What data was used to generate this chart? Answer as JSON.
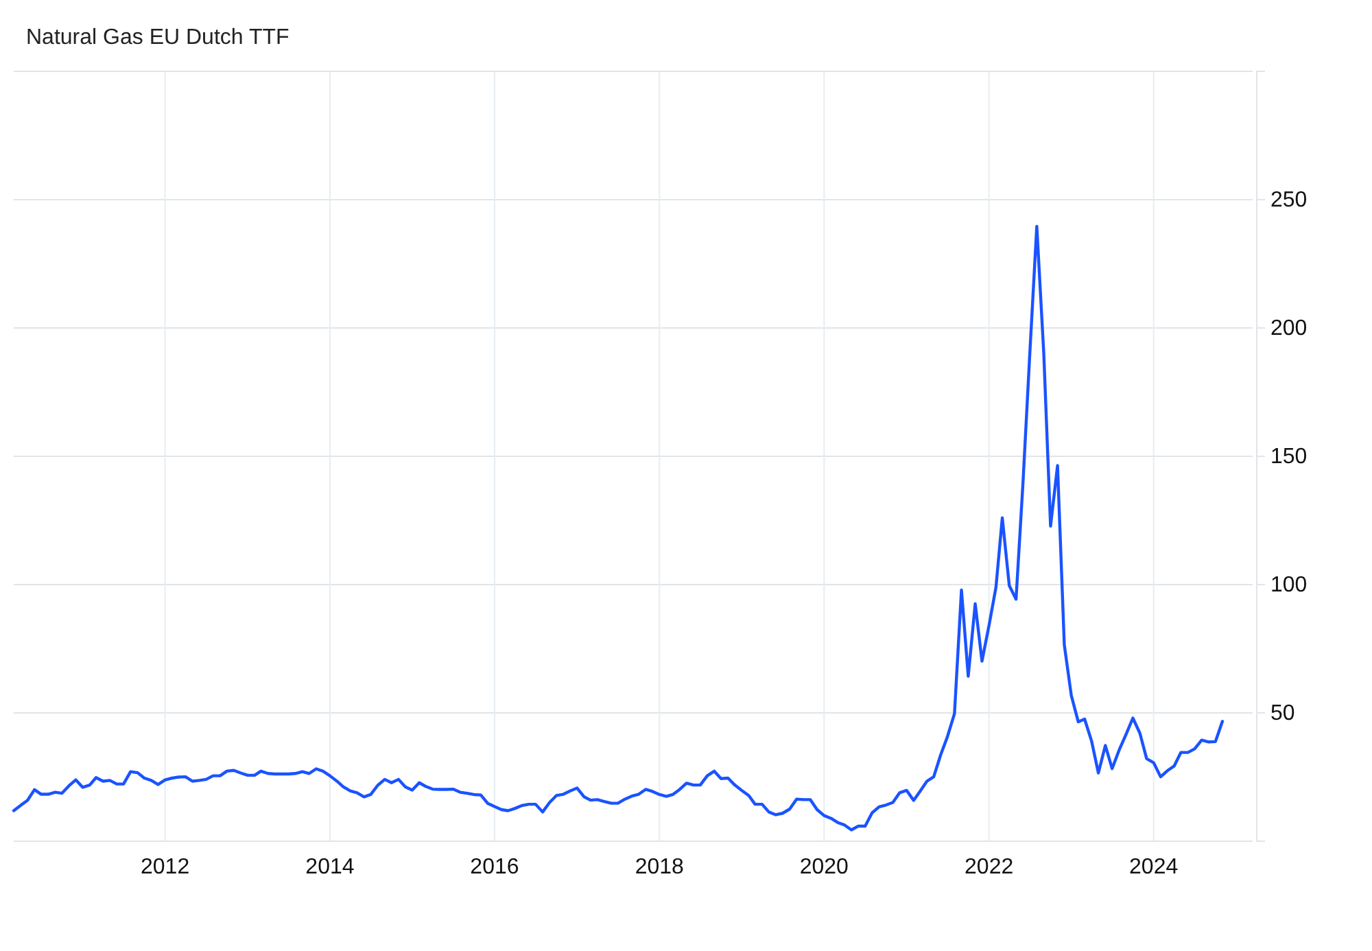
{
  "chart_data": {
    "type": "line",
    "title": "Natural Gas EU Dutch TTF",
    "x": [
      "2010-03",
      "2010-04",
      "2010-05",
      "2010-06",
      "2010-07",
      "2010-08",
      "2010-09",
      "2010-10",
      "2010-11",
      "2010-12",
      "2011-01",
      "2011-02",
      "2011-03",
      "2011-04",
      "2011-05",
      "2011-06",
      "2011-07",
      "2011-08",
      "2011-09",
      "2011-10",
      "2011-11",
      "2011-12",
      "2012-01",
      "2012-02",
      "2012-03",
      "2012-04",
      "2012-05",
      "2012-06",
      "2012-07",
      "2012-08",
      "2012-09",
      "2012-10",
      "2012-11",
      "2012-12",
      "2013-01",
      "2013-02",
      "2013-03",
      "2013-04",
      "2013-05",
      "2013-06",
      "2013-07",
      "2013-08",
      "2013-09",
      "2013-10",
      "2013-11",
      "2013-12",
      "2014-01",
      "2014-02",
      "2014-03",
      "2014-04",
      "2014-05",
      "2014-06",
      "2014-07",
      "2014-08",
      "2014-09",
      "2014-10",
      "2014-11",
      "2014-12",
      "2015-01",
      "2015-02",
      "2015-03",
      "2015-04",
      "2015-05",
      "2015-06",
      "2015-07",
      "2015-08",
      "2015-09",
      "2015-10",
      "2015-11",
      "2015-12",
      "2016-01",
      "2016-02",
      "2016-03",
      "2016-04",
      "2016-05",
      "2016-06",
      "2016-07",
      "2016-08",
      "2016-09",
      "2016-10",
      "2016-11",
      "2016-12",
      "2017-01",
      "2017-02",
      "2017-03",
      "2017-04",
      "2017-05",
      "2017-06",
      "2017-07",
      "2017-08",
      "2017-09",
      "2017-10",
      "2017-11",
      "2017-12",
      "2018-01",
      "2018-02",
      "2018-03",
      "2018-04",
      "2018-05",
      "2018-06",
      "2018-07",
      "2018-08",
      "2018-09",
      "2018-10",
      "2018-11",
      "2018-12",
      "2019-01",
      "2019-02",
      "2019-03",
      "2019-04",
      "2019-05",
      "2019-06",
      "2019-07",
      "2019-08",
      "2019-09",
      "2019-10",
      "2019-11",
      "2019-12",
      "2020-01",
      "2020-02",
      "2020-03",
      "2020-04",
      "2020-05",
      "2020-06",
      "2020-07",
      "2020-08",
      "2020-09",
      "2020-10",
      "2020-11",
      "2020-12",
      "2021-01",
      "2021-02",
      "2021-03",
      "2021-04",
      "2021-05",
      "2021-06",
      "2021-07",
      "2021-08",
      "2021-09",
      "2021-10",
      "2021-11",
      "2021-12",
      "2022-01",
      "2022-02",
      "2022-03",
      "2022-04",
      "2022-05",
      "2022-06",
      "2022-07",
      "2022-08",
      "2022-09",
      "2022-10",
      "2022-11",
      "2022-12",
      "2023-01",
      "2023-02",
      "2023-03",
      "2023-04",
      "2023-05",
      "2023-06",
      "2023-07",
      "2023-08",
      "2023-09",
      "2023-10",
      "2023-11",
      "2023-12",
      "2024-01",
      "2024-02",
      "2024-03",
      "2024-04",
      "2024-05",
      "2024-06",
      "2024-07",
      "2024-08",
      "2024-09",
      "2024-10",
      "2024-11"
    ],
    "series": [
      {
        "color": "#1a53ff",
        "values": [
          11.9,
          14,
          15.9,
          20.1,
          18.3,
          18.3,
          19.1,
          18.7,
          21.6,
          23.9,
          21,
          21.9,
          24.8,
          23.4,
          23.7,
          22.3,
          22.3,
          27.1,
          26.7,
          24.6,
          23.7,
          22.1,
          23.9,
          24.6,
          25,
          25.1,
          23.4,
          23.7,
          24.1,
          25.5,
          25.5,
          27.3,
          27.6,
          26.6,
          25.7,
          25.7,
          27.3,
          26.4,
          26.2,
          26.2,
          26.2,
          26.4,
          27.1,
          26.4,
          28.2,
          27.3,
          25.5,
          23.4,
          21.2,
          19.6,
          18.9,
          17.3,
          18.2,
          21.8,
          24.1,
          22.8,
          24.1,
          21.2,
          19.9,
          22.8,
          21.4,
          20.3,
          20.2,
          20.2,
          20.3,
          19.1,
          18.7,
          18.2,
          18,
          14.8,
          13.5,
          12.3,
          11.9,
          12.8,
          13.9,
          14.4,
          14.4,
          11.4,
          15.1,
          17.8,
          18.3,
          19.6,
          20.7,
          17.3,
          16,
          16.2,
          15.5,
          14.8,
          14.8,
          16.4,
          17.6,
          18.3,
          20.2,
          19.4,
          18.2,
          17.5,
          18.2,
          20.2,
          22.6,
          21.9,
          21.9,
          25.5,
          27.3,
          24.4,
          24.6,
          21.9,
          19.8,
          17.8,
          14.4,
          14.4,
          11.4,
          10.3,
          10.9,
          12.5,
          16.4,
          16.2,
          16.2,
          12.3,
          10,
          8.9,
          7.3,
          6.3,
          4.4,
          5.9,
          5.9,
          11.1,
          13.4,
          14.1,
          15.1,
          18.9,
          19.8,
          15.9,
          19.4,
          23.4,
          25.1,
          33.7,
          40.8,
          49.7,
          97.9,
          64.3,
          92.5,
          70.2,
          84,
          99,
          126,
          99.6,
          94.3,
          140,
          190,
          239.6,
          190,
          122.8,
          146.4,
          76.5,
          56.8,
          46.5,
          47.6,
          39,
          26.6,
          37.3,
          28.3,
          35.5,
          41.7,
          48,
          42.1,
          32.2,
          30.6,
          25.1,
          27.4,
          29.3,
          34.6,
          34.6,
          36,
          39.4,
          38.7,
          38.8,
          46.7
        ]
      }
    ],
    "xlim": [
      "2010-03",
      "2025-03-15"
    ],
    "xticks": [
      {
        "value": "2012",
        "label": "2012"
      },
      {
        "value": "2014",
        "label": "2014"
      },
      {
        "value": "2016",
        "label": "2016"
      },
      {
        "value": "2018",
        "label": "2018"
      },
      {
        "value": "2020",
        "label": "2020"
      },
      {
        "value": "2022",
        "label": "2022"
      },
      {
        "value": "2024",
        "label": "2024"
      }
    ],
    "ylim": [
      0,
      300
    ],
    "yticks": [
      50,
      100,
      150,
      200,
      250
    ],
    "grid": true,
    "marker": "none",
    "line_style": "solid"
  }
}
